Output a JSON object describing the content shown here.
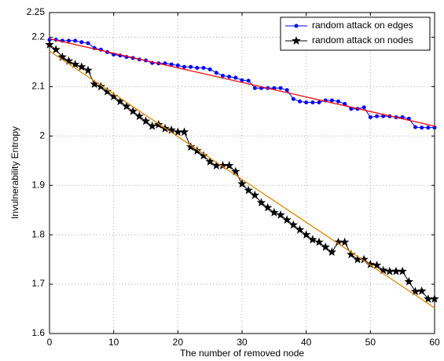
{
  "chart_data": {
    "type": "line",
    "xlabel": "The number of removed node",
    "ylabel": "Invulnerability Entropy",
    "x": [
      0,
      1,
      2,
      3,
      4,
      5,
      6,
      7,
      8,
      9,
      10,
      11,
      12,
      13,
      14,
      15,
      16,
      17,
      18,
      19,
      20,
      21,
      22,
      23,
      24,
      25,
      26,
      27,
      28,
      29,
      30,
      31,
      32,
      33,
      34,
      35,
      36,
      37,
      38,
      39,
      40,
      41,
      42,
      43,
      44,
      45,
      46,
      47,
      48,
      49,
      50,
      51,
      52,
      53,
      54,
      55,
      56,
      57,
      58,
      59,
      60
    ],
    "series": [
      {
        "name": "random attack on edges",
        "color": "#0000ff",
        "marker": "dot",
        "values": [
          2.195,
          2.195,
          2.193,
          2.193,
          2.193,
          2.19,
          2.188,
          2.178,
          2.175,
          2.17,
          2.165,
          2.163,
          2.16,
          2.158,
          2.155,
          2.153,
          2.148,
          2.147,
          2.147,
          2.145,
          2.143,
          2.14,
          2.14,
          2.138,
          2.138,
          2.135,
          2.128,
          2.122,
          2.12,
          2.118,
          2.113,
          2.112,
          2.097,
          2.097,
          2.097,
          2.097,
          2.097,
          2.093,
          2.075,
          2.07,
          2.068,
          2.068,
          2.068,
          2.072,
          2.072,
          2.07,
          2.065,
          2.055,
          2.055,
          2.058,
          2.038,
          2.04,
          2.04,
          2.04,
          2.038,
          2.038,
          2.035,
          2.018,
          2.017,
          2.017,
          2.017
        ]
      },
      {
        "name": "random attack on nodes",
        "color": "#000000",
        "marker": "star",
        "values": [
          2.185,
          2.175,
          2.16,
          2.152,
          2.145,
          2.14,
          2.133,
          2.105,
          2.1,
          2.09,
          2.08,
          2.07,
          2.06,
          2.05,
          2.04,
          2.03,
          2.02,
          2.023,
          2.015,
          2.012,
          2.008,
          2.008,
          1.978,
          1.97,
          1.96,
          1.948,
          1.94,
          1.94,
          1.94,
          1.928,
          1.903,
          1.89,
          1.88,
          1.865,
          1.855,
          1.845,
          1.84,
          1.83,
          1.82,
          1.81,
          1.8,
          1.79,
          1.785,
          1.775,
          1.765,
          1.785,
          1.785,
          1.76,
          1.75,
          1.75,
          1.74,
          1.738,
          1.728,
          1.726,
          1.726,
          1.726,
          1.705,
          1.685,
          1.686,
          1.67,
          1.67
        ]
      }
    ],
    "fit_lines": [
      {
        "color": "#ff0000",
        "x": [
          0,
          60
        ],
        "values": [
          2.197,
          2.02
        ]
      },
      {
        "color": "#e08a00",
        "x": [
          0,
          60
        ],
        "values": [
          2.172,
          1.652
        ]
      }
    ],
    "xlim": [
      0,
      60
    ],
    "xticks": [
      0,
      10,
      20,
      30,
      40,
      50,
      60
    ],
    "ylim": [
      1.6,
      2.25
    ],
    "yticks": [
      1.6,
      1.7,
      1.8,
      1.9,
      2,
      2.1,
      2.2,
      2.25
    ],
    "grid": true,
    "legend": "upper right"
  }
}
